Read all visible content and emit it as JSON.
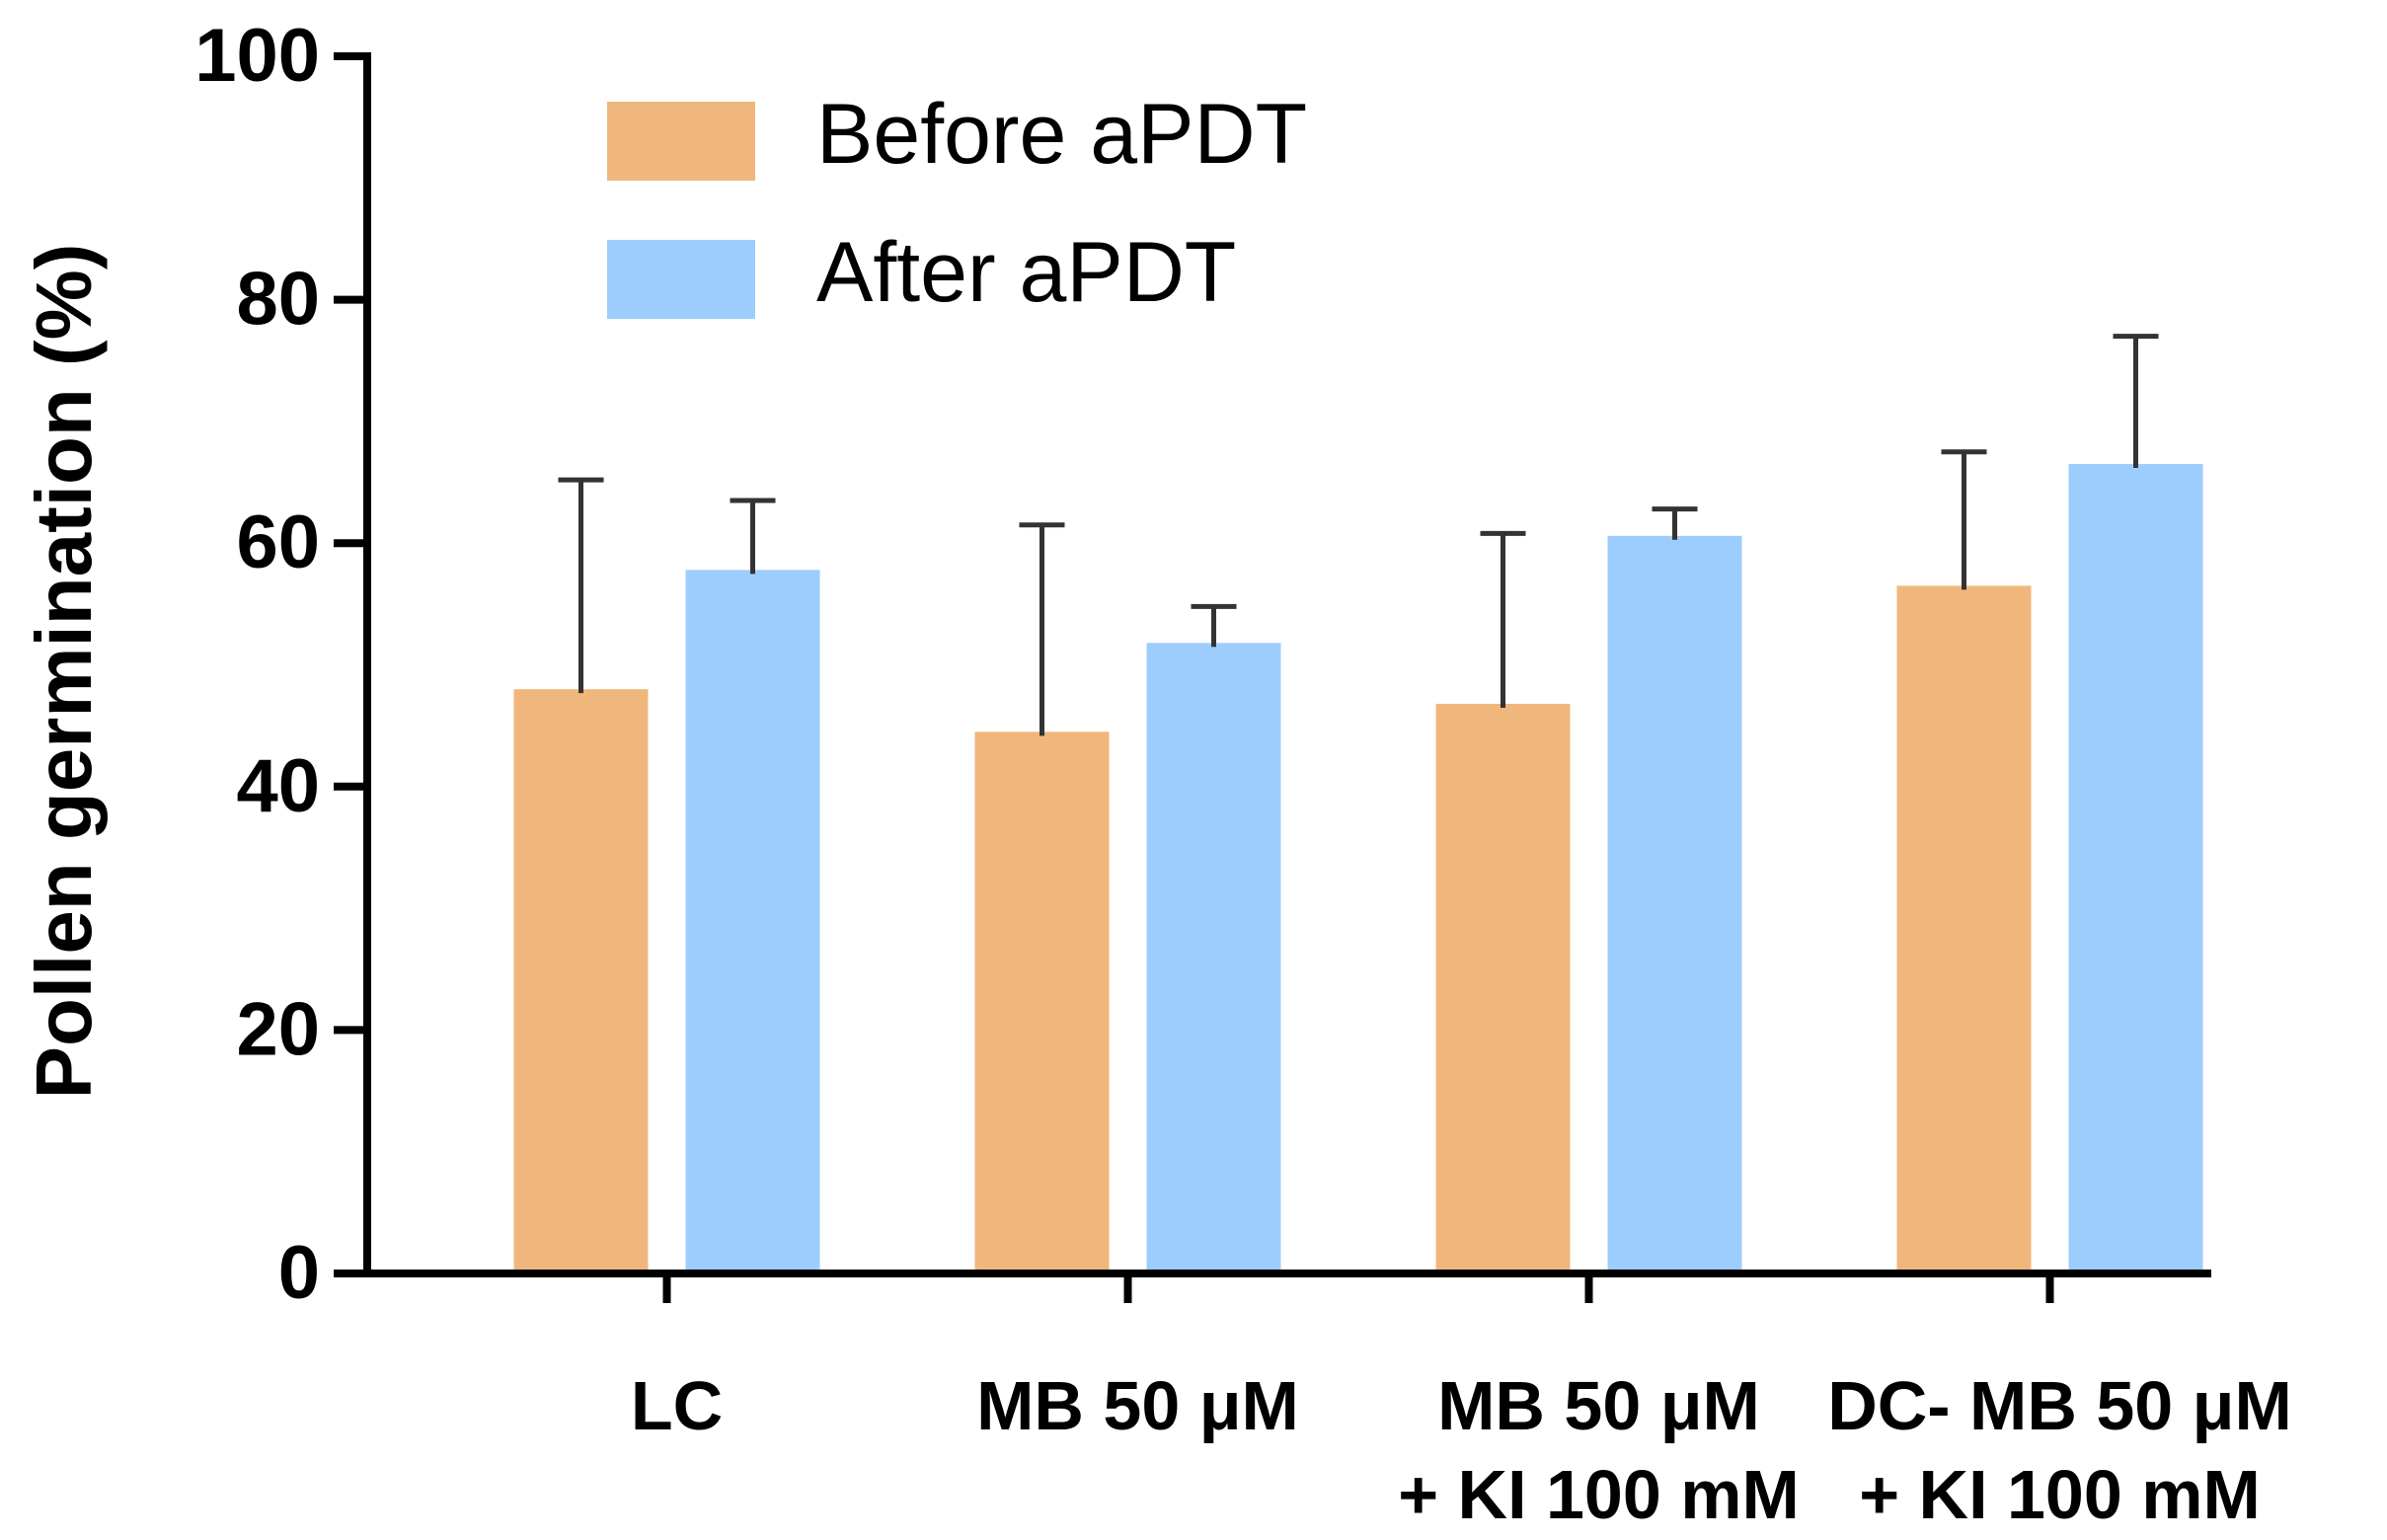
{
  "chart_data": {
    "type": "bar",
    "title": "",
    "xlabel": "",
    "ylabel": "Pollen germination (%)",
    "ylim": [
      0,
      100
    ],
    "yticks": [
      "0",
      "20",
      "40",
      "60",
      "80",
      "100"
    ],
    "categories": [
      {
        "line1": "LC",
        "line2": ""
      },
      {
        "line1": "MB 50 μM",
        "line2": ""
      },
      {
        "line1": "MB 50 μM",
        "line2": "+ KI 100 mM"
      },
      {
        "line1": "DC- MB 50 μM",
        "line2": "+ KI 100 mM"
      }
    ],
    "series": [
      {
        "name": "Before aPDT",
        "color": "#F0B77D",
        "values": [
          48.0,
          44.5,
          46.8,
          56.5
        ],
        "errors": [
          17.2,
          17.0,
          14.0,
          11.0
        ]
      },
      {
        "name": "After aPDT",
        "color": "#9DCDFD",
        "values": [
          57.8,
          51.8,
          60.6,
          66.5
        ],
        "errors": [
          5.7,
          3.0,
          2.2,
          10.5
        ]
      }
    ],
    "legend_position": "top-left"
  }
}
